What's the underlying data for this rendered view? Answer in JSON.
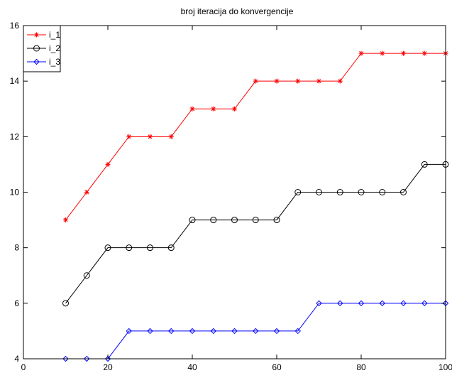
{
  "chart_data": {
    "type": "line",
    "title": "broj iteracija do konvergencije",
    "xlabel": "",
    "ylabel": "",
    "xlim": [
      0,
      100
    ],
    "ylim": [
      4,
      16
    ],
    "xticks": [
      0,
      20,
      40,
      60,
      80,
      100
    ],
    "yticks": [
      4,
      6,
      8,
      10,
      12,
      14,
      16
    ],
    "grid": false,
    "legend_position": "top-left",
    "x": [
      10,
      15,
      20,
      25,
      30,
      35,
      40,
      45,
      50,
      55,
      60,
      65,
      70,
      75,
      80,
      85,
      90,
      95,
      100
    ],
    "series": [
      {
        "name": "i_1",
        "color": "#ff0000",
        "marker": "asterisk",
        "values": [
          9,
          10,
          11,
          12,
          12,
          12,
          13,
          13,
          13,
          14,
          14,
          14,
          14,
          14,
          15,
          15,
          15,
          15,
          15
        ]
      },
      {
        "name": "i_2",
        "color": "#000000",
        "marker": "circle",
        "values": [
          6,
          7,
          8,
          8,
          8,
          8,
          9,
          9,
          9,
          9,
          9,
          10,
          10,
          10,
          10,
          10,
          10,
          11,
          11
        ]
      },
      {
        "name": "i_3",
        "color": "#0000ff",
        "marker": "diamond",
        "values": [
          4,
          4,
          4,
          5,
          5,
          5,
          5,
          5,
          5,
          5,
          5,
          5,
          6,
          6,
          6,
          6,
          6,
          6,
          6
        ]
      }
    ]
  }
}
